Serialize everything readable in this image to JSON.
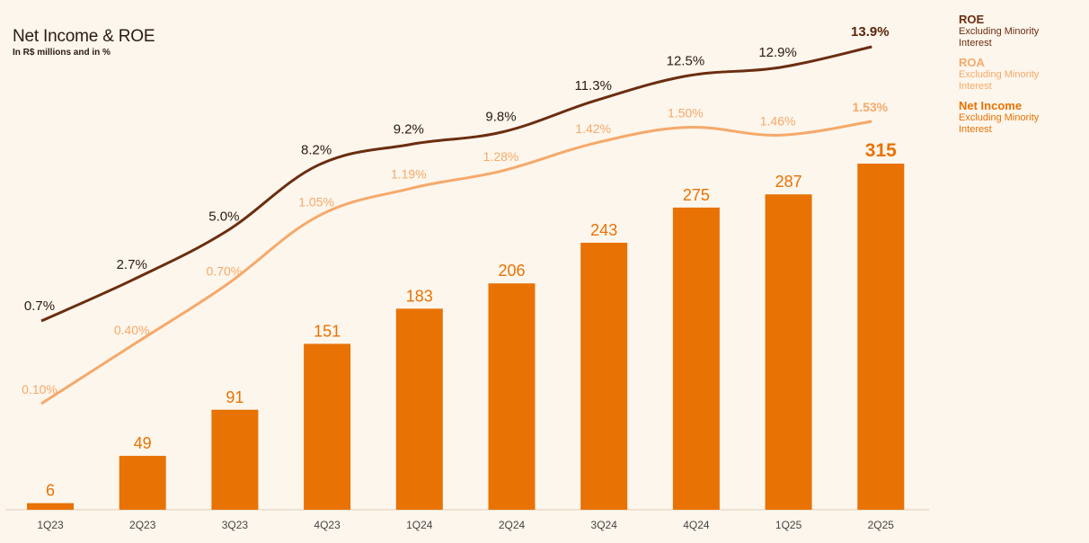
{
  "header": {
    "title": "Net Income & ROE",
    "subtitle": "In R$ millions and in %"
  },
  "legend": {
    "items": [
      {
        "name": "ROE",
        "desc": "Excluding Minority Interest",
        "color": "#6b2d10"
      },
      {
        "name": "ROA",
        "desc": "Excluding Minority Interest",
        "color": "#f5a96a"
      },
      {
        "name": "Net Income",
        "desc": "Excluding Minority Interest",
        "color": "#e87204"
      }
    ]
  },
  "chart_data": {
    "type": "bar",
    "title": "Net Income & ROE",
    "subtitle": "In R$ millions and in %",
    "categories": [
      "1Q23",
      "2Q23",
      "3Q23",
      "4Q23",
      "1Q24",
      "2Q24",
      "3Q24",
      "4Q24",
      "1Q25",
      "2Q25"
    ],
    "series": [
      {
        "name": "Net Income",
        "kind": "bar",
        "color": "#e87204",
        "values": [
          6,
          49,
          91,
          151,
          183,
          206,
          243,
          275,
          287,
          315
        ],
        "labels": [
          "6",
          "49",
          "91",
          "151",
          "183",
          "206",
          "243",
          "275",
          "287",
          "315"
        ]
      },
      {
        "name": "ROE",
        "kind": "line",
        "color": "#6b2d10",
        "values": [
          0.7,
          2.7,
          5.0,
          8.2,
          9.2,
          9.8,
          11.3,
          12.5,
          12.9,
          13.9
        ],
        "labels": [
          "0.7%",
          "2.7%",
          "5.0%",
          "8.2%",
          "9.2%",
          "9.8%",
          "11.3%",
          "12.5%",
          "12.9%",
          "13.9%"
        ]
      },
      {
        "name": "ROA",
        "kind": "line",
        "color": "#f5a96a",
        "values": [
          0.1,
          0.4,
          0.7,
          1.05,
          1.19,
          1.28,
          1.42,
          1.5,
          1.46,
          1.53
        ],
        "labels": [
          "0.10%",
          "0.40%",
          "0.70%",
          "1.05%",
          "1.19%",
          "1.28%",
          "1.42%",
          "1.50%",
          "1.46%",
          "1.53%"
        ]
      }
    ],
    "xlabel": "",
    "ylabel": "",
    "ylim": [
      0,
      340
    ],
    "grid": false,
    "legend_position": "right"
  }
}
